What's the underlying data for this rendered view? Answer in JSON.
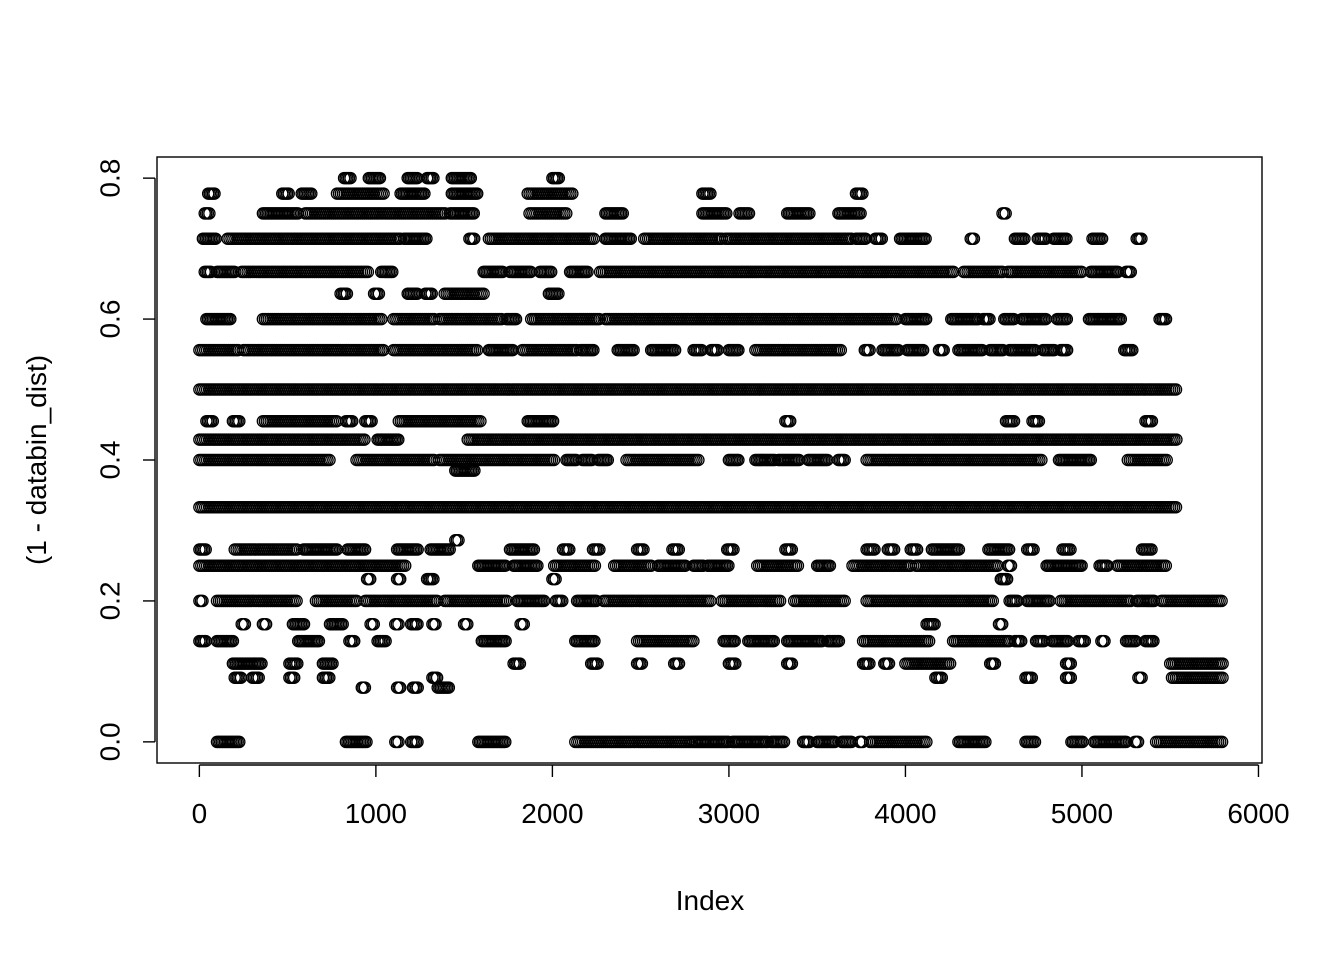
{
  "chart_data": {
    "type": "scatter",
    "title": "",
    "xlabel": "Index",
    "ylabel": "(1 - databin_dist)",
    "xlim": [
      -240,
      6020
    ],
    "ylim": [
      -0.03,
      0.83
    ],
    "x_ticks": [
      0,
      1000,
      2000,
      3000,
      4000,
      5000,
      6000
    ],
    "x_tick_labels": [
      "0",
      "1000",
      "2000",
      "3000",
      "4000",
      "5000",
      "6000"
    ],
    "y_ticks": [
      0.0,
      0.2,
      0.4,
      0.6,
      0.8
    ],
    "y_tick_labels": [
      "0.0",
      "0.2",
      "0.4",
      "0.6",
      "0.8"
    ],
    "grid": false,
    "marker": "open-circle",
    "marker_color": "#000000",
    "n_points_approx": 5790,
    "bands": [
      {
        "y": 0.8,
        "x_ranges": [
          [
            820,
            860
          ],
          [
            960,
            1030
          ],
          [
            1180,
            1240
          ],
          [
            1290,
            1330
          ],
          [
            1430,
            1540
          ],
          [
            2000,
            2040
          ]
        ]
      },
      {
        "y": 0.778,
        "x_ranges": [
          [
            50,
            90
          ],
          [
            470,
            510
          ],
          [
            580,
            640
          ],
          [
            780,
            1050
          ],
          [
            1140,
            1280
          ],
          [
            1430,
            1580
          ],
          [
            1860,
            2120
          ],
          [
            2850,
            2900
          ],
          [
            3720,
            3760
          ]
        ]
      },
      {
        "y": 0.75,
        "x_ranges": [
          [
            30,
            60
          ],
          [
            360,
            560
          ],
          [
            600,
            1400
          ],
          [
            1420,
            1560
          ],
          [
            1870,
            2080
          ],
          [
            2300,
            2400
          ],
          [
            2850,
            2990
          ],
          [
            3060,
            3120
          ],
          [
            3330,
            3460
          ],
          [
            3620,
            3750
          ],
          [
            4550,
            4570
          ]
        ]
      },
      {
        "y": 0.714,
        "x_ranges": [
          [
            20,
            100
          ],
          [
            160,
            1140
          ],
          [
            1160,
            1290
          ],
          [
            1530,
            1560
          ],
          [
            1640,
            2240
          ],
          [
            2300,
            2450
          ],
          [
            2520,
            2960
          ],
          [
            2980,
            3700
          ],
          [
            3720,
            3780
          ],
          [
            3830,
            3870
          ],
          [
            3970,
            4120
          ],
          [
            4370,
            4390
          ],
          [
            4620,
            4680
          ],
          [
            4750,
            4800
          ],
          [
            4840,
            4920
          ],
          [
            5060,
            5120
          ],
          [
            5310,
            5340
          ]
        ]
      },
      {
        "y": 0.667,
        "x_ranges": [
          [
            30,
            70
          ],
          [
            100,
            200
          ],
          [
            240,
            960
          ],
          [
            1030,
            1100
          ],
          [
            1610,
            1720
          ],
          [
            1760,
            1880
          ],
          [
            1930,
            2000
          ],
          [
            2100,
            2200
          ],
          [
            2270,
            4280
          ],
          [
            4330,
            4560
          ],
          [
            4580,
            5000
          ],
          [
            5050,
            5210
          ],
          [
            5250,
            5280
          ]
        ]
      },
      {
        "y": 0.636,
        "x_ranges": [
          [
            800,
            840
          ],
          [
            990,
            1020
          ],
          [
            1180,
            1240
          ],
          [
            1280,
            1320
          ],
          [
            1390,
            1620
          ],
          [
            1980,
            2040
          ]
        ]
      },
      {
        "y": 0.6,
        "x_ranges": [
          [
            40,
            180
          ],
          [
            360,
            1040
          ],
          [
            1100,
            1340
          ],
          [
            1360,
            1720
          ],
          [
            1740,
            1800
          ],
          [
            1880,
            2270
          ],
          [
            2300,
            3960
          ],
          [
            4000,
            4120
          ],
          [
            4260,
            4420
          ],
          [
            4440,
            4480
          ],
          [
            4560,
            4620
          ],
          [
            4660,
            4800
          ],
          [
            4860,
            4920
          ],
          [
            5040,
            5220
          ],
          [
            5440,
            5480
          ]
        ]
      },
      {
        "y": 0.556,
        "x_ranges": [
          [
            0,
            230
          ],
          [
            250,
            1050
          ],
          [
            1100,
            1580
          ],
          [
            1640,
            1780
          ],
          [
            1830,
            2140
          ],
          [
            2160,
            2240
          ],
          [
            2370,
            2460
          ],
          [
            2560,
            2700
          ],
          [
            2800,
            2850
          ],
          [
            2900,
            2940
          ],
          [
            3000,
            3060
          ],
          [
            3150,
            3640
          ],
          [
            3770,
            3800
          ],
          [
            3870,
            3960
          ],
          [
            4010,
            4100
          ],
          [
            4190,
            4220
          ],
          [
            4300,
            4440
          ],
          [
            4480,
            4560
          ],
          [
            4590,
            4740
          ],
          [
            4780,
            4850
          ],
          [
            4880,
            4920
          ],
          [
            5240,
            5290
          ]
        ]
      },
      {
        "y": 0.5,
        "x_ranges": [
          [
            0,
            5540
          ]
        ]
      },
      {
        "y": 0.455,
        "x_ranges": [
          [
            40,
            80
          ],
          [
            190,
            230
          ],
          [
            360,
            780
          ],
          [
            830,
            870
          ],
          [
            940,
            980
          ],
          [
            1130,
            1600
          ],
          [
            1860,
            2010
          ],
          [
            3320,
            3350
          ],
          [
            4570,
            4620
          ],
          [
            4720,
            4760
          ],
          [
            5360,
            5400
          ]
        ]
      },
      {
        "y": 0.429,
        "x_ranges": [
          [
            0,
            940
          ],
          [
            1010,
            1130
          ],
          [
            1520,
            5540
          ]
        ]
      },
      {
        "y": 0.4,
        "x_ranges": [
          [
            0,
            740
          ],
          [
            890,
            1340
          ],
          [
            1360,
            2010
          ],
          [
            2080,
            2140
          ],
          [
            2170,
            2230
          ],
          [
            2260,
            2320
          ],
          [
            2420,
            2830
          ],
          [
            3000,
            3060
          ],
          [
            3150,
            3260
          ],
          [
            3280,
            3400
          ],
          [
            3450,
            3560
          ],
          [
            3620,
            3660
          ],
          [
            3780,
            4320
          ],
          [
            4330,
            4780
          ],
          [
            4870,
            5050
          ],
          [
            5260,
            5480
          ]
        ]
      },
      {
        "y": 0.385,
        "x_ranges": [
          [
            1450,
            1560
          ]
        ]
      },
      {
        "y": 0.333,
        "x_ranges": [
          [
            0,
            5540
          ]
        ]
      },
      {
        "y": 0.286,
        "x_ranges": [
          [
            1450,
            1470
          ]
        ]
      },
      {
        "y": 0.273,
        "x_ranges": [
          [
            0,
            40
          ],
          [
            200,
            560
          ],
          [
            590,
            780
          ],
          [
            840,
            940
          ],
          [
            1120,
            1240
          ],
          [
            1310,
            1420
          ],
          [
            1760,
            1900
          ],
          [
            2060,
            2100
          ],
          [
            2230,
            2270
          ],
          [
            2480,
            2520
          ],
          [
            2680,
            2720
          ],
          [
            2990,
            3030
          ],
          [
            3320,
            3360
          ],
          [
            3780,
            3830
          ],
          [
            3900,
            3940
          ],
          [
            4030,
            4070
          ],
          [
            4150,
            4310
          ],
          [
            4470,
            4590
          ],
          [
            4690,
            4730
          ],
          [
            4890,
            4940
          ],
          [
            5340,
            5400
          ]
        ]
      },
      {
        "y": 0.25,
        "x_ranges": [
          [
            0,
            1170
          ],
          [
            1580,
            1740
          ],
          [
            1780,
            1920
          ],
          [
            2010,
            2250
          ],
          [
            2350,
            2560
          ],
          [
            2600,
            2760
          ],
          [
            2800,
            2860
          ],
          [
            2880,
            3000
          ],
          [
            3160,
            3400
          ],
          [
            3500,
            3580
          ],
          [
            3700,
            4030
          ],
          [
            4060,
            4530
          ],
          [
            4580,
            4600
          ],
          [
            4800,
            5000
          ],
          [
            5100,
            5150
          ],
          [
            5200,
            5480
          ]
        ]
      },
      {
        "y": 0.231,
        "x_ranges": [
          [
            950,
            970
          ],
          [
            1120,
            1140
          ],
          [
            1290,
            1330
          ],
          [
            2000,
            2020
          ],
          [
            4540,
            4580
          ]
        ]
      },
      {
        "y": 0.2,
        "x_ranges": [
          [
            0,
            20
          ],
          [
            100,
            560
          ],
          [
            660,
            900
          ],
          [
            940,
            1350
          ],
          [
            1390,
            1750
          ],
          [
            1800,
            1960
          ],
          [
            2020,
            2060
          ],
          [
            2140,
            2250
          ],
          [
            2290,
            2900
          ],
          [
            2960,
            3300
          ],
          [
            3370,
            3660
          ],
          [
            3780,
            4500
          ],
          [
            4590,
            4640
          ],
          [
            4690,
            4820
          ],
          [
            4880,
            5280
          ],
          [
            5310,
            5410
          ],
          [
            5450,
            5800
          ]
        ]
      },
      {
        "y": 0.167,
        "x_ranges": [
          [
            240,
            260
          ],
          [
            360,
            380
          ],
          [
            530,
            600
          ],
          [
            740,
            820
          ],
          [
            970,
            990
          ],
          [
            1110,
            1130
          ],
          [
            1200,
            1240
          ],
          [
            1320,
            1340
          ],
          [
            1500,
            1520
          ],
          [
            1820,
            1840
          ],
          [
            4120,
            4170
          ],
          [
            4530,
            4550
          ]
        ]
      },
      {
        "y": 0.143,
        "x_ranges": [
          [
            0,
            40
          ],
          [
            100,
            190
          ],
          [
            560,
            680
          ],
          [
            850,
            880
          ],
          [
            1010,
            1060
          ],
          [
            1600,
            1740
          ],
          [
            2130,
            2240
          ],
          [
            2480,
            2800
          ],
          [
            2970,
            3040
          ],
          [
            3110,
            3260
          ],
          [
            3330,
            3530
          ],
          [
            3560,
            3630
          ],
          [
            3760,
            4140
          ],
          [
            4270,
            4590
          ],
          [
            4620,
            4660
          ],
          [
            4740,
            4790
          ],
          [
            4830,
            4920
          ],
          [
            4980,
            5020
          ],
          [
            5110,
            5130
          ],
          [
            5250,
            5310
          ],
          [
            5360,
            5410
          ]
        ]
      },
      {
        "y": 0.111,
        "x_ranges": [
          [
            190,
            360
          ],
          [
            510,
            560
          ],
          [
            700,
            760
          ],
          [
            1780,
            1820
          ],
          [
            2220,
            2260
          ],
          [
            2480,
            2510
          ],
          [
            2690,
            2720
          ],
          [
            3000,
            3040
          ],
          [
            3330,
            3360
          ],
          [
            3760,
            3800
          ],
          [
            3880,
            3910
          ],
          [
            4000,
            4260
          ],
          [
            4480,
            4510
          ],
          [
            4910,
            4940
          ],
          [
            5500,
            5800
          ]
        ]
      },
      {
        "y": 0.091,
        "x_ranges": [
          [
            200,
            240
          ],
          [
            300,
            340
          ],
          [
            510,
            540
          ],
          [
            700,
            740
          ],
          [
            1320,
            1350
          ],
          [
            4170,
            4210
          ],
          [
            4680,
            4720
          ],
          [
            4910,
            4940
          ],
          [
            5320,
            5340
          ],
          [
            5510,
            5800
          ]
        ]
      },
      {
        "y": 0.077,
        "x_ranges": [
          [
            920,
            940
          ],
          [
            1120,
            1140
          ],
          [
            1210,
            1240
          ],
          [
            1350,
            1420
          ]
        ]
      },
      {
        "y": 0.0,
        "x_ranges": [
          [
            100,
            230
          ],
          [
            830,
            950
          ],
          [
            1110,
            1130
          ],
          [
            1200,
            1240
          ],
          [
            1580,
            1740
          ],
          [
            2130,
            2790
          ],
          [
            2800,
            3000
          ],
          [
            3020,
            3220
          ],
          [
            3240,
            3320
          ],
          [
            3420,
            3460
          ],
          [
            3500,
            3600
          ],
          [
            3640,
            3700
          ],
          [
            3740,
            3760
          ],
          [
            3800,
            4120
          ],
          [
            4300,
            4460
          ],
          [
            4680,
            4740
          ],
          [
            4940,
            5010
          ],
          [
            5070,
            5250
          ],
          [
            5300,
            5320
          ],
          [
            5420,
            5800
          ]
        ]
      }
    ]
  }
}
